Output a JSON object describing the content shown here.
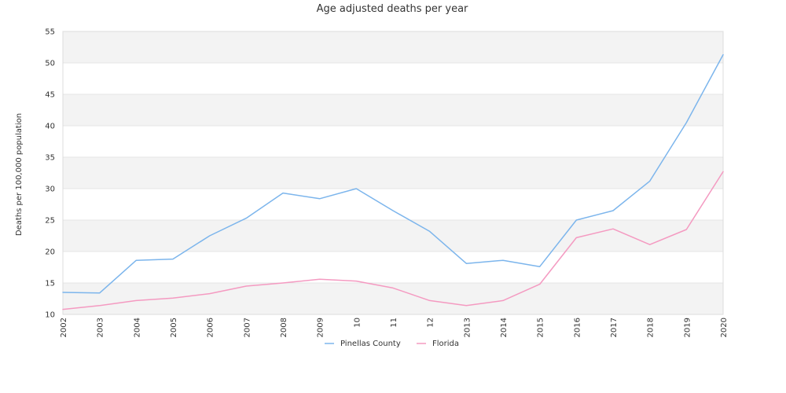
{
  "chart_data": {
    "type": "line",
    "title": "Age adjusted deaths per year",
    "xlabel": "",
    "ylabel": "Deaths per 100,000 population",
    "ylim": [
      10,
      55
    ],
    "y_ticks": [
      10,
      15,
      20,
      25,
      30,
      35,
      40,
      45,
      50,
      55
    ],
    "grid": "horizontal alternating bands",
    "legend_position": "bottom-center",
    "x": [
      "2002",
      "2003",
      "2004",
      "2005",
      "2006",
      "2007",
      "2008",
      "2009",
      "2010",
      "2011",
      "2012",
      "2013",
      "2014",
      "2015",
      "2016",
      "2017",
      "2018",
      "2019",
      "2020"
    ],
    "x_tick_labels": [
      "2002",
      "2003",
      "2004",
      "2005",
      "2006",
      "2007",
      "2008",
      "2009",
      "10",
      "11",
      "12",
      "2013",
      "2014",
      "2015",
      "2016",
      "2017",
      "2018",
      "2019",
      "2020"
    ],
    "series": [
      {
        "name": "Pinellas County",
        "color": "#7cb5ec",
        "values": [
          13.5,
          13.4,
          18.6,
          18.8,
          22.5,
          25.3,
          29.3,
          28.4,
          30.0,
          26.5,
          23.2,
          18.1,
          18.6,
          17.6,
          25.0,
          26.5,
          31.2,
          40.5,
          51.3
        ]
      },
      {
        "name": "Florida",
        "color": "#f49ac1",
        "values": [
          10.8,
          11.4,
          12.2,
          12.6,
          13.3,
          14.5,
          15.0,
          15.6,
          15.3,
          14.2,
          12.2,
          11.4,
          12.2,
          14.8,
          22.2,
          23.6,
          21.1,
          23.5,
          32.7
        ]
      }
    ]
  }
}
